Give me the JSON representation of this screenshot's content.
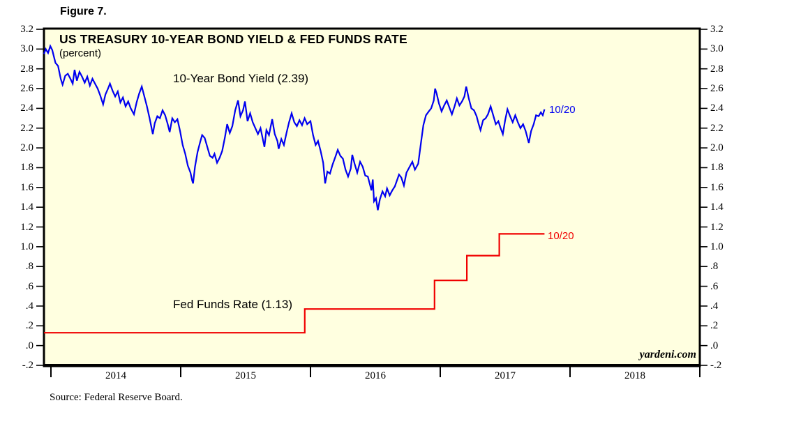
{
  "figure_label": "Figure 7.",
  "header": {
    "title": "US TREASURY 10-YEAR BOND YIELD & FED FUNDS RATE",
    "subtitle": "(percent)"
  },
  "watermark": "yardeni.com",
  "source_note": "Source: Federal Reserve Board.",
  "colors": {
    "plot_background": "#FFFFE0",
    "frame": "#000000",
    "bond_yield_line": "#0000F0",
    "fed_funds_line": "#F00000",
    "text": "#000000"
  },
  "chart_data": {
    "type": "line",
    "title": "US TREASURY 10-YEAR BOND YIELD & FED FUNDS RATE",
    "ylabel": "percent",
    "ylim": [
      -0.2,
      3.2
    ],
    "xlim_years": [
      2013.946,
      2019.0
    ],
    "grid": false,
    "legend_position": "inline-annotations",
    "y_tick_labels": [
      "3.2",
      "3.0",
      "2.8",
      "2.6",
      "2.4",
      "2.2",
      "2.0",
      "1.8",
      "1.6",
      "1.4",
      "1.2",
      "1.0",
      ".8",
      ".6",
      ".4",
      ".2",
      ".0",
      "-.2"
    ],
    "x_year_boundaries": [
      2014,
      2015,
      2016,
      2017,
      2018,
      2019
    ],
    "x_tick_labels": [
      "2014",
      "2015",
      "2016",
      "2017",
      "2018"
    ],
    "series": [
      {
        "name": "10-Year Bond Yield",
        "inline_label": "10-Year Bond Yield (2.39)",
        "last_value": 2.39,
        "last_date_label": "10/20",
        "color": "#0000F0",
        "points": [
          [
            2013.946,
            2.95
          ],
          [
            2013.96,
            3.0
          ],
          [
            2013.978,
            2.96
          ],
          [
            2013.995,
            3.03
          ],
          [
            2014.01,
            2.99
          ],
          [
            2014.035,
            2.86
          ],
          [
            2014.055,
            2.83
          ],
          [
            2014.075,
            2.7
          ],
          [
            2014.09,
            2.64
          ],
          [
            2014.11,
            2.73
          ],
          [
            2014.13,
            2.75
          ],
          [
            2014.15,
            2.7
          ],
          [
            2014.168,
            2.65
          ],
          [
            2014.182,
            2.79
          ],
          [
            2014.2,
            2.68
          ],
          [
            2014.22,
            2.77
          ],
          [
            2014.24,
            2.72
          ],
          [
            2014.26,
            2.66
          ],
          [
            2014.28,
            2.72
          ],
          [
            2014.3,
            2.63
          ],
          [
            2014.32,
            2.7
          ],
          [
            2014.34,
            2.65
          ],
          [
            2014.36,
            2.6
          ],
          [
            2014.38,
            2.53
          ],
          [
            2014.402,
            2.44
          ],
          [
            2014.42,
            2.54
          ],
          [
            2014.44,
            2.6
          ],
          [
            2014.455,
            2.65
          ],
          [
            2014.475,
            2.58
          ],
          [
            2014.495,
            2.52
          ],
          [
            2014.515,
            2.57
          ],
          [
            2014.535,
            2.46
          ],
          [
            2014.555,
            2.51
          ],
          [
            2014.575,
            2.42
          ],
          [
            2014.595,
            2.47
          ],
          [
            2014.615,
            2.4
          ],
          [
            2014.64,
            2.34
          ],
          [
            2014.66,
            2.46
          ],
          [
            2014.68,
            2.55
          ],
          [
            2014.7,
            2.62
          ],
          [
            2014.72,
            2.52
          ],
          [
            2014.74,
            2.42
          ],
          [
            2014.76,
            2.3
          ],
          [
            2014.785,
            2.14
          ],
          [
            2014.8,
            2.25
          ],
          [
            2014.82,
            2.32
          ],
          [
            2014.84,
            2.3
          ],
          [
            2014.86,
            2.38
          ],
          [
            2014.88,
            2.33
          ],
          [
            2014.9,
            2.24
          ],
          [
            2014.915,
            2.16
          ],
          [
            2014.935,
            2.3
          ],
          [
            2014.955,
            2.26
          ],
          [
            2014.975,
            2.29
          ],
          [
            2014.995,
            2.17
          ],
          [
            2015.015,
            2.03
          ],
          [
            2015.035,
            1.94
          ],
          [
            2015.055,
            1.82
          ],
          [
            2015.075,
            1.75
          ],
          [
            2015.088,
            1.67
          ],
          [
            2015.095,
            1.64
          ],
          [
            2015.11,
            1.81
          ],
          [
            2015.13,
            1.96
          ],
          [
            2015.15,
            2.06
          ],
          [
            2015.165,
            2.13
          ],
          [
            2015.185,
            2.1
          ],
          [
            2015.205,
            2.01
          ],
          [
            2015.225,
            1.92
          ],
          [
            2015.245,
            1.9
          ],
          [
            2015.26,
            1.94
          ],
          [
            2015.28,
            1.85
          ],
          [
            2015.3,
            1.9
          ],
          [
            2015.32,
            1.97
          ],
          [
            2015.34,
            2.1
          ],
          [
            2015.358,
            2.24
          ],
          [
            2015.378,
            2.15
          ],
          [
            2015.398,
            2.22
          ],
          [
            2015.42,
            2.38
          ],
          [
            2015.442,
            2.48
          ],
          [
            2015.46,
            2.32
          ],
          [
            2015.48,
            2.38
          ],
          [
            2015.495,
            2.47
          ],
          [
            2015.515,
            2.27
          ],
          [
            2015.535,
            2.35
          ],
          [
            2015.555,
            2.26
          ],
          [
            2015.575,
            2.2
          ],
          [
            2015.595,
            2.14
          ],
          [
            2015.615,
            2.2
          ],
          [
            2015.645,
            2.01
          ],
          [
            2015.66,
            2.18
          ],
          [
            2015.68,
            2.13
          ],
          [
            2015.705,
            2.29
          ],
          [
            2015.725,
            2.14
          ],
          [
            2015.745,
            2.07
          ],
          [
            2015.755,
            1.99
          ],
          [
            2015.775,
            2.09
          ],
          [
            2015.795,
            2.03
          ],
          [
            2015.815,
            2.15
          ],
          [
            2015.835,
            2.26
          ],
          [
            2015.855,
            2.35
          ],
          [
            2015.875,
            2.26
          ],
          [
            2015.895,
            2.22
          ],
          [
            2015.915,
            2.28
          ],
          [
            2015.935,
            2.23
          ],
          [
            2015.955,
            2.3
          ],
          [
            2015.975,
            2.24
          ],
          [
            2016.0,
            2.27
          ],
          [
            2016.02,
            2.13
          ],
          [
            2016.04,
            2.03
          ],
          [
            2016.058,
            2.07
          ],
          [
            2016.078,
            1.97
          ],
          [
            2016.098,
            1.85
          ],
          [
            2016.113,
            1.64
          ],
          [
            2016.13,
            1.76
          ],
          [
            2016.15,
            1.74
          ],
          [
            2016.17,
            1.83
          ],
          [
            2016.192,
            1.91
          ],
          [
            2016.21,
            1.98
          ],
          [
            2016.23,
            1.92
          ],
          [
            2016.25,
            1.89
          ],
          [
            2016.27,
            1.78
          ],
          [
            2016.29,
            1.71
          ],
          [
            2016.31,
            1.79
          ],
          [
            2016.322,
            1.93
          ],
          [
            2016.34,
            1.84
          ],
          [
            2016.36,
            1.75
          ],
          [
            2016.382,
            1.86
          ],
          [
            2016.402,
            1.81
          ],
          [
            2016.422,
            1.72
          ],
          [
            2016.442,
            1.71
          ],
          [
            2016.462,
            1.61
          ],
          [
            2016.47,
            1.57
          ],
          [
            2016.48,
            1.68
          ],
          [
            2016.49,
            1.46
          ],
          [
            2016.505,
            1.49
          ],
          [
            2016.519,
            1.37
          ],
          [
            2016.535,
            1.48
          ],
          [
            2016.555,
            1.56
          ],
          [
            2016.575,
            1.51
          ],
          [
            2016.59,
            1.59
          ],
          [
            2016.61,
            1.52
          ],
          [
            2016.63,
            1.57
          ],
          [
            2016.65,
            1.61
          ],
          [
            2016.682,
            1.73
          ],
          [
            2016.7,
            1.7
          ],
          [
            2016.72,
            1.62
          ],
          [
            2016.74,
            1.75
          ],
          [
            2016.76,
            1.8
          ],
          [
            2016.785,
            1.86
          ],
          [
            2016.805,
            1.78
          ],
          [
            2016.83,
            1.84
          ],
          [
            2016.853,
            2.07
          ],
          [
            2016.87,
            2.23
          ],
          [
            2016.89,
            2.33
          ],
          [
            2016.912,
            2.37
          ],
          [
            2016.93,
            2.4
          ],
          [
            2016.95,
            2.48
          ],
          [
            2016.96,
            2.6
          ],
          [
            2016.972,
            2.55
          ],
          [
            2016.99,
            2.45
          ],
          [
            2017.01,
            2.37
          ],
          [
            2017.03,
            2.43
          ],
          [
            2017.05,
            2.48
          ],
          [
            2017.07,
            2.41
          ],
          [
            2017.09,
            2.34
          ],
          [
            2017.11,
            2.42
          ],
          [
            2017.128,
            2.5
          ],
          [
            2017.148,
            2.43
          ],
          [
            2017.168,
            2.47
          ],
          [
            2017.186,
            2.52
          ],
          [
            2017.2,
            2.62
          ],
          [
            2017.22,
            2.5
          ],
          [
            2017.24,
            2.4
          ],
          [
            2017.26,
            2.38
          ],
          [
            2017.28,
            2.32
          ],
          [
            2017.296,
            2.24
          ],
          [
            2017.31,
            2.18
          ],
          [
            2017.33,
            2.28
          ],
          [
            2017.35,
            2.3
          ],
          [
            2017.368,
            2.34
          ],
          [
            2017.388,
            2.42
          ],
          [
            2017.408,
            2.33
          ],
          [
            2017.428,
            2.24
          ],
          [
            2017.448,
            2.27
          ],
          [
            2017.465,
            2.2
          ],
          [
            2017.482,
            2.14
          ],
          [
            2017.5,
            2.28
          ],
          [
            2017.518,
            2.39
          ],
          [
            2017.538,
            2.32
          ],
          [
            2017.558,
            2.26
          ],
          [
            2017.578,
            2.33
          ],
          [
            2017.598,
            2.26
          ],
          [
            2017.618,
            2.2
          ],
          [
            2017.638,
            2.24
          ],
          [
            2017.658,
            2.17
          ],
          [
            2017.682,
            2.05
          ],
          [
            2017.7,
            2.17
          ],
          [
            2017.72,
            2.24
          ],
          [
            2017.738,
            2.33
          ],
          [
            2017.758,
            2.32
          ],
          [
            2017.775,
            2.36
          ],
          [
            2017.79,
            2.33
          ],
          [
            2017.803,
            2.39
          ]
        ]
      },
      {
        "name": "Fed Funds Rate",
        "inline_label": "Fed Funds Rate (1.13)",
        "last_value": 1.13,
        "last_date_label": "10/20",
        "color": "#F00000",
        "points": [
          [
            2013.946,
            0.13
          ],
          [
            2015.956,
            0.13
          ],
          [
            2015.956,
            0.37
          ],
          [
            2016.956,
            0.37
          ],
          [
            2016.956,
            0.66
          ],
          [
            2017.205,
            0.66
          ],
          [
            2017.205,
            0.91
          ],
          [
            2017.455,
            0.91
          ],
          [
            2017.455,
            1.13
          ],
          [
            2017.803,
            1.13
          ]
        ]
      }
    ]
  }
}
